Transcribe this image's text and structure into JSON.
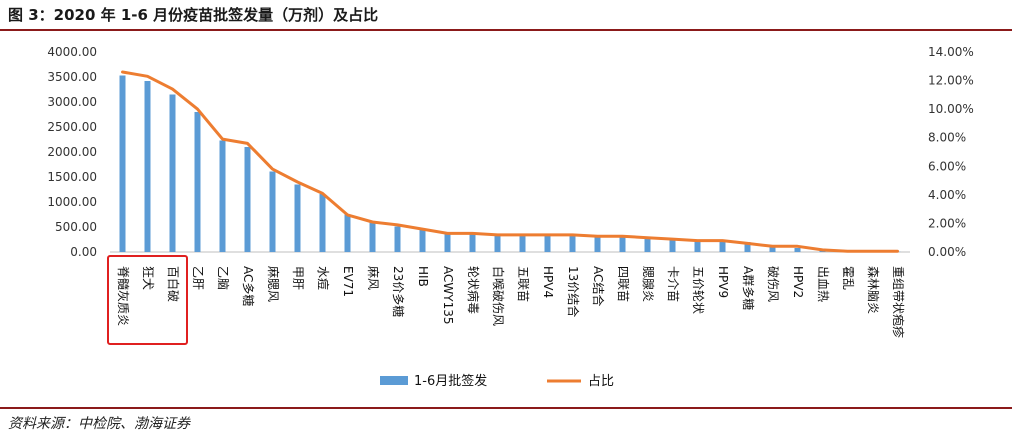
{
  "title": "图 3：2020 年 1-6 月份疫苗批签发量（万剂）及占比",
  "source": "资料来源：中检院、渤海证券",
  "colors": {
    "bar": "#5b9bd5",
    "line": "#ed7d31",
    "highlight": "#e02020",
    "rule": "#8b1a1a"
  },
  "chart_data": {
    "type": "bar",
    "categories": [
      "脊髓灰质炎",
      "狂犬",
      "百白破",
      "乙肝",
      "乙脑",
      "AC多糖",
      "麻腮风",
      "甲肝",
      "水痘",
      "EV71",
      "麻风",
      "23价多糖",
      "HIB",
      "ACWY135",
      "轮状病毒",
      "白喉破伤风",
      "五联苗",
      "HPV4",
      "13价结合",
      "AC结合",
      "四联苗",
      "腮腺炎",
      "卡介苗",
      "五价轮状",
      "HPV9",
      "A群多糖",
      "破伤风",
      "HPV2",
      "出血热",
      "霍乱",
      "森林脑炎",
      "重组带状疱疹"
    ],
    "series": [
      {
        "name": "1-6月批签发",
        "axis": "left",
        "kind": "bar",
        "values": [
          3530,
          3420,
          3150,
          2800,
          2230,
          2100,
          1610,
          1350,
          1160,
          750,
          590,
          510,
          450,
          390,
          370,
          350,
          340,
          340,
          340,
          320,
          320,
          300,
          260,
          220,
          220,
          200,
          100,
          80,
          20,
          10,
          5,
          5
        ]
      },
      {
        "name": "占比",
        "axis": "right",
        "kind": "line",
        "values": [
          12.6,
          12.3,
          11.4,
          10.0,
          7.9,
          7.6,
          5.8,
          4.9,
          4.1,
          2.6,
          2.1,
          1.9,
          1.6,
          1.3,
          1.3,
          1.2,
          1.2,
          1.2,
          1.2,
          1.1,
          1.1,
          1.0,
          0.9,
          0.8,
          0.8,
          0.6,
          0.4,
          0.4,
          0.15,
          0.05,
          0.05,
          0.05
        ]
      }
    ],
    "y_left": {
      "min": 0,
      "max": 4000,
      "step": 500,
      "tick_labels": [
        "0.00",
        "500.00",
        "1000.00",
        "1500.00",
        "2000.00",
        "2500.00",
        "3000.00",
        "3500.00",
        "4000.00"
      ]
    },
    "y_right": {
      "min": 0,
      "max": 14,
      "step": 2,
      "tick_labels": [
        "0.00%",
        "2.00%",
        "4.00%",
        "6.00%",
        "8.00%",
        "10.00%",
        "12.00%",
        "14.00%"
      ]
    },
    "highlighted_categories": [
      "脊髓灰质炎",
      "狂犬",
      "百白破"
    ],
    "legend": [
      "1-6月批签发",
      "占比"
    ],
    "legend_position": "bottom",
    "grid": false
  }
}
